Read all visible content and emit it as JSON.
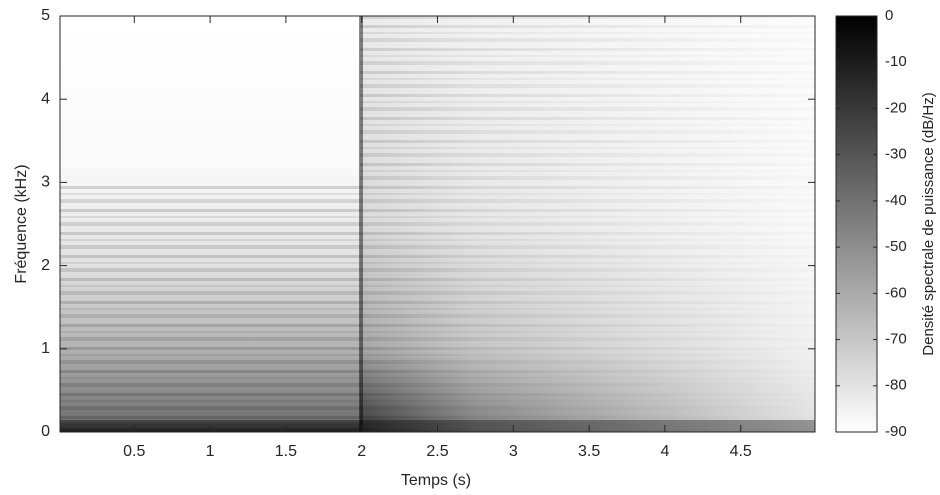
{
  "chart_data": {
    "type": "spectrogram",
    "xlabel": "Temps (s)",
    "ylabel": "Fréquence (kHz)",
    "xlim": [
      0.01,
      4.99
    ],
    "xticks": [
      0.5,
      1,
      1.5,
      2,
      2.5,
      3,
      3.5,
      4,
      4.5
    ],
    "ylim": [
      0,
      5
    ],
    "yticks": [
      0,
      1,
      2,
      3,
      4,
      5
    ],
    "colorbar": {
      "label": "Densité spectrale de puissance (dB/Hz)",
      "clim": [
        -90,
        0
      ],
      "ticks": [
        0,
        -10,
        -20,
        -30,
        -40,
        -50,
        -60,
        -70,
        -80,
        -90
      ],
      "colormap": [
        "#ffffff",
        "#000000"
      ]
    }
  }
}
